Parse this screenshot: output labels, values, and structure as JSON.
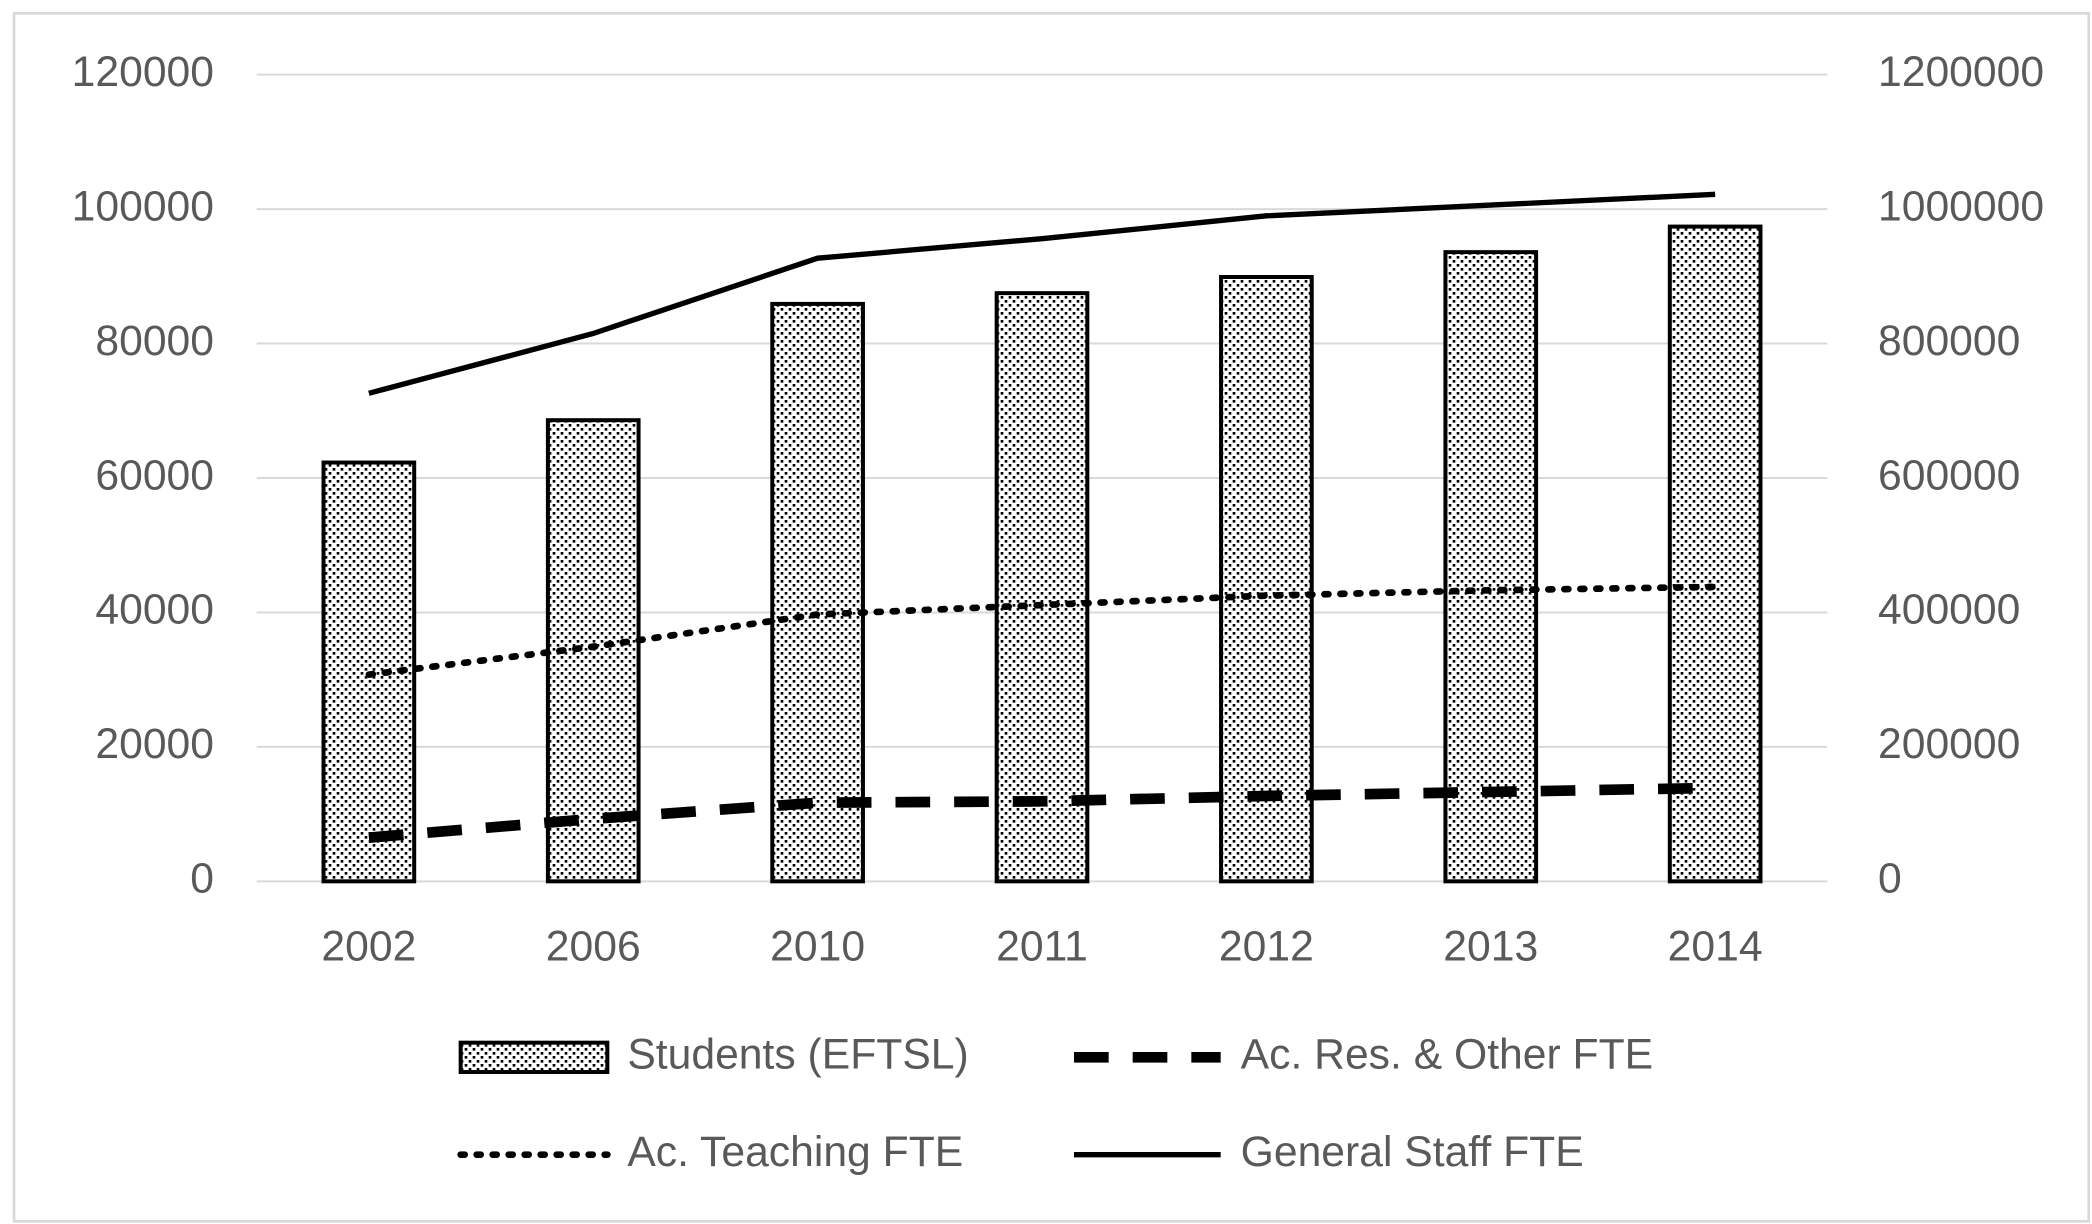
{
  "chart_data": {
    "type": "bar_line",
    "categories": [
      "2002",
      "2006",
      "2010",
      "2011",
      "2012",
      "2013",
      "2014"
    ],
    "series": [
      {
        "name": "Students (EFTSL)",
        "type": "bar",
        "axis": "y2",
        "color": "#000000",
        "pattern": "dots",
        "values": [
          623000,
          686000,
          859000,
          875000,
          899000,
          936000,
          974000
        ]
      },
      {
        "name": "Ac. Res. & Other FTE",
        "type": "line",
        "style": "dashed",
        "color": "#000000",
        "values": [
          6500,
          9300,
          11700,
          11900,
          12700,
          13300,
          13900
        ]
      },
      {
        "name": "Ac. Teaching FTE",
        "type": "line",
        "style": "dotted",
        "color": "#000000",
        "values": [
          30750,
          34900,
          39700,
          41100,
          42500,
          43300,
          43800
        ]
      },
      {
        "name": "General Staff FTE",
        "type": "line",
        "style": "solid",
        "color": "#000000",
        "values": [
          72600,
          81500,
          92700,
          95600,
          99000,
          100600,
          102200
        ]
      }
    ],
    "ylim": [
      0,
      120000
    ],
    "yticks": [
      0,
      20000,
      40000,
      60000,
      80000,
      100000,
      120000
    ],
    "y2lim": [
      0,
      1200000
    ],
    "y2ticks": [
      0,
      200000,
      400000,
      600000,
      800000,
      1000000,
      1200000
    ],
    "grid": true,
    "legend": "bottom"
  }
}
